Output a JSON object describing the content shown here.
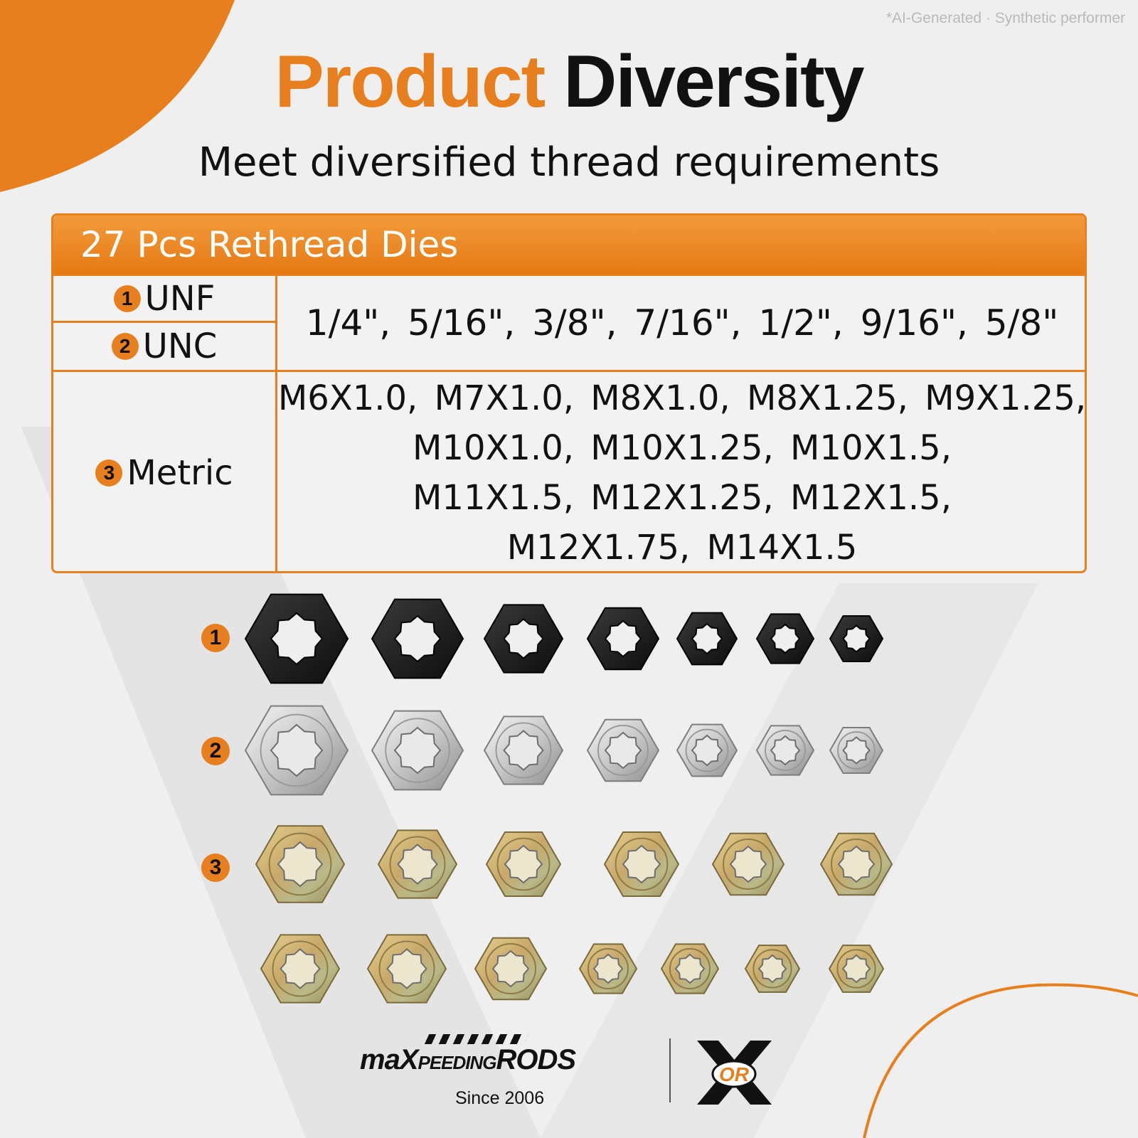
{
  "watermark": "*AI-Generated · Synthetic performer",
  "title": {
    "part1": "Product",
    "part2": "Diversity"
  },
  "subtitle": "Meet diversified thread requirements",
  "table": {
    "header": "27 Pcs Rethread Dies",
    "rows": [
      {
        "badge": "1",
        "label": "UNF"
      },
      {
        "badge": "2",
        "label": "UNC"
      },
      {
        "badge": "3",
        "label": "Metric"
      }
    ],
    "inch_sizes": "1/4\",  5/16\",  3/8\",  7/16\",  1/2\",  9/16\",  5/8\"",
    "metric_lines": [
      "M6X1.0, M7X1.0, M8X1.0, M8X1.25, M9X1.25,",
      "M10X1.0, M10X1.25, M10X1.5,",
      "M11X1.5, M12X1.25, M12X1.5,",
      "M12X1.75, M14X1.5"
    ]
  },
  "die_rows": [
    {
      "badge": "1",
      "finish": "black",
      "count": 7
    },
    {
      "badge": "2",
      "finish": "silver",
      "count": 7
    },
    {
      "badge": "3",
      "finish": "gold",
      "count": 13
    }
  ],
  "colors": {
    "accent": "#e87f1e",
    "background": "#efefef",
    "text": "#111111"
  },
  "brand": {
    "name_small_left": "maX",
    "name_middle": "PEEDING",
    "name_right": "RODS",
    "since": "Since 2006",
    "emblem_text": "OR"
  }
}
